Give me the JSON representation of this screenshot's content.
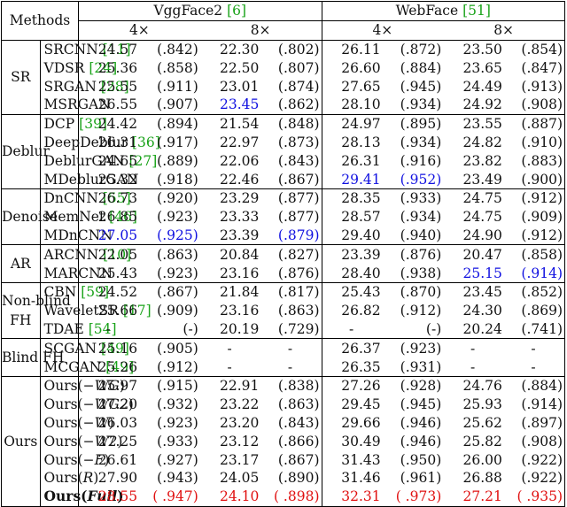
{
  "header": {
    "methods": "Methods",
    "datasets": [
      {
        "name": "VggFace2",
        "ref": "[6]",
        "scales": [
          "4×",
          "8×"
        ]
      },
      {
        "name": "WebFace",
        "ref": "[51]",
        "scales": [
          "4×",
          "8×"
        ]
      }
    ]
  },
  "colors": {
    "ref": "#1aa31a",
    "blue": "#1010e0",
    "red": "#e01010"
  },
  "groups": [
    {
      "name": "SR",
      "rows": [
        {
          "method": "SRCNN ",
          "ref": "[11]",
          "cells": [
            [
              "24.57",
              "(.842)"
            ],
            [
              "22.30",
              "(.802)"
            ],
            [
              "26.11",
              "(.872)"
            ],
            [
              "23.50",
              "(.854)"
            ]
          ]
        },
        {
          "method": "VDSR ",
          "ref": "[24]",
          "cells": [
            [
              "25.36",
              "(.858)"
            ],
            [
              "22.50",
              "(.807)"
            ],
            [
              "26.60",
              "(.884)"
            ],
            [
              "23.65",
              "(.847)"
            ]
          ]
        },
        {
          "method": "SRGAN ",
          "ref": "[28]",
          "cells": [
            [
              "25.55",
              "(.911)"
            ],
            [
              "23.01",
              "(.874)"
            ],
            [
              "27.65",
              "(.945)"
            ],
            [
              "24.49",
              "(.913)"
            ]
          ]
        },
        {
          "method": "MSRGAN",
          "ref": "",
          "cells": [
            [
              "26.55",
              "(.907)"
            ],
            [
              "23.45",
              "(.862)"
            ],
            [
              "28.10",
              "(.934)"
            ],
            [
              "24.92",
              "(.908)"
            ]
          ],
          "blue": [
            [
              1,
              0
            ]
          ]
        }
      ]
    },
    {
      "name": "Deblur",
      "rows": [
        {
          "method": "DCP ",
          "ref": "[39]",
          "cells": [
            [
              "24.42",
              "(.894)"
            ],
            [
              "21.54",
              "(.848)"
            ],
            [
              "24.97",
              "(.895)"
            ],
            [
              "23.55",
              "(.887)"
            ]
          ]
        },
        {
          "method": "DeepDeblur ",
          "ref": "[36]",
          "cells": [
            [
              "26.31",
              "(.917)"
            ],
            [
              "22.97",
              "(.873)"
            ],
            [
              "28.13",
              "(.934)"
            ],
            [
              "24.82",
              "(.910)"
            ]
          ]
        },
        {
          "method": "DeblurGAN ",
          "ref": "[27]",
          "cells": [
            [
              "24.65",
              "(.889)"
            ],
            [
              "22.06",
              "(.843)"
            ],
            [
              "26.31",
              "(.916)"
            ],
            [
              "23.82",
              "(.883)"
            ]
          ]
        },
        {
          "method": "MDeblurGAN",
          "ref": "",
          "cells": [
            [
              "25.32",
              "(.918)"
            ],
            [
              "22.46",
              "(.867)"
            ],
            [
              "29.41",
              "(.952)"
            ],
            [
              "23.49",
              "(.900)"
            ]
          ],
          "blue": [
            [
              2,
              0
            ],
            [
              2,
              1
            ]
          ]
        }
      ]
    },
    {
      "name": "Denoise",
      "rows": [
        {
          "method": "DnCNN ",
          "ref": "[55]",
          "cells": [
            [
              "26.73",
              "(.920)"
            ],
            [
              "23.29",
              "(.877)"
            ],
            [
              "28.35",
              "(.933)"
            ],
            [
              "24.75",
              "(.912)"
            ]
          ]
        },
        {
          "method": "MemNet ",
          "ref": "[46]",
          "cells": [
            [
              "26.85",
              "(.923)"
            ],
            [
              "23.33",
              "(.877)"
            ],
            [
              "28.57",
              "(.934)"
            ],
            [
              "24.75",
              "(.909)"
            ]
          ]
        },
        {
          "method": "MDnCNN",
          "ref": "",
          "cells": [
            [
              "27.05",
              "(.925)"
            ],
            [
              "23.39",
              "(.879)"
            ],
            [
              "29.40",
              "(.940)"
            ],
            [
              "24.90",
              "(.912)"
            ]
          ],
          "blue": [
            [
              0,
              0
            ],
            [
              0,
              1
            ],
            [
              1,
              1
            ]
          ]
        }
      ]
    },
    {
      "name": "AR",
      "rows": [
        {
          "method": "ARCNN ",
          "ref": "[10]",
          "cells": [
            [
              "22.05",
              "(.863)"
            ],
            [
              "20.84",
              "(.827)"
            ],
            [
              "23.39",
              "(.876)"
            ],
            [
              "20.47",
              "(.858)"
            ]
          ]
        },
        {
          "method": "MARCNN",
          "ref": "",
          "cells": [
            [
              "25.43",
              "(.923)"
            ],
            [
              "23.16",
              "(.876)"
            ],
            [
              "28.40",
              "(.938)"
            ],
            [
              "25.15",
              "(.914)"
            ]
          ],
          "blue": [
            [
              3,
              0
            ],
            [
              3,
              1
            ]
          ]
        }
      ]
    },
    {
      "name": "Non-blind FH",
      "name_lines": [
        "Non-blind",
        "FH"
      ],
      "rows": [
        {
          "method": "CBN ",
          "ref": "[59]",
          "cells": [
            [
              "24.52",
              "(.867)"
            ],
            [
              "21.84",
              "(.817)"
            ],
            [
              "25.43",
              "(.870)"
            ],
            [
              "23.45",
              "(.852)"
            ]
          ]
        },
        {
          "method": "WaveletSR ",
          "ref": "[17]",
          "cells": [
            [
              "25.66",
              "(.909)"
            ],
            [
              "23.16",
              "(.863)"
            ],
            [
              "26.82",
              "(.912)"
            ],
            [
              "24.30",
              "(.869)"
            ]
          ]
        },
        {
          "method": "TDAE ",
          "ref": "[54]",
          "cells": [
            [
              "-",
              "(-)"
            ],
            [
              "20.19",
              "(.729)"
            ],
            [
              "-",
              "(-)"
            ],
            [
              "20.24",
              "(.741)"
            ]
          ]
        }
      ]
    },
    {
      "name": "Blind FH",
      "rows": [
        {
          "method": "SCGAN ",
          "ref": "[49]",
          "cells": [
            [
              "25.16",
              "(.905)"
            ],
            [
              "-",
              "-"
            ],
            [
              "26.37",
              "(.923)"
            ],
            [
              "-",
              "-"
            ]
          ]
        },
        {
          "method": "MCGAN ",
          "ref": "[49]",
          "cells": [
            [
              "25.26",
              "(.912)"
            ],
            [
              "-",
              "-"
            ],
            [
              "26.35",
              "(.931)"
            ],
            [
              "-",
              "-"
            ]
          ]
        }
      ]
    },
    {
      "name": "Ours",
      "rows": [
        {
          "method": "Ours(",
          "var": "−WG",
          "close": ")",
          "cells": [
            [
              "25.97",
              "(.915)"
            ],
            [
              "22.91",
              "(.838)"
            ],
            [
              "27.26",
              "(.928)"
            ],
            [
              "24.76",
              "(.884)"
            ]
          ]
        },
        {
          "method": "Ours(",
          "var": "−WG2",
          "close": ")",
          "cells": [
            [
              "27.20",
              "(.932)"
            ],
            [
              "23.22",
              "(.863)"
            ],
            [
              "29.45",
              "(.945)"
            ],
            [
              "25.93",
              "(.914)"
            ]
          ]
        },
        {
          "method": "Ours(",
          "var": "−W",
          "close": ")",
          "cells": [
            [
              "26.03",
              "(.923)"
            ],
            [
              "23.20",
              "(.843)"
            ],
            [
              "29.66",
              "(.946)"
            ],
            [
              "25.62",
              "(.897)"
            ]
          ]
        },
        {
          "method": "Ours(",
          "var": "−W2",
          "close": ")",
          "cells": [
            [
              "27.25",
              "(.933)"
            ],
            [
              "23.12",
              "(.866)"
            ],
            [
              "30.49",
              "(.946)"
            ],
            [
              "25.82",
              "(.908)"
            ]
          ]
        },
        {
          "method": "Ours(",
          "var": "−F",
          "close": ")",
          "cells": [
            [
              "26.61",
              "(.927)"
            ],
            [
              "23.17",
              "(.867)"
            ],
            [
              "31.43",
              "(.950)"
            ],
            [
              "26.00",
              "(.922)"
            ]
          ]
        },
        {
          "method": "Ours(",
          "var": "R",
          "close": ")",
          "cells": [
            [
              "27.90",
              "(.943)"
            ],
            [
              "24.05",
              "(.890)"
            ],
            [
              "31.46",
              "(.961)"
            ],
            [
              "26.88",
              "(.922)"
            ]
          ]
        },
        {
          "method": "Ours(",
          "var": "Full",
          "close": ")",
          "bold": true,
          "cells": [
            [
              "28.55",
              "( .947)"
            ],
            [
              "24.10",
              "( .898)"
            ],
            [
              "32.31",
              "( .973)"
            ],
            [
              "27.21",
              "( .935)"
            ]
          ],
          "red_all": true
        }
      ]
    }
  ]
}
